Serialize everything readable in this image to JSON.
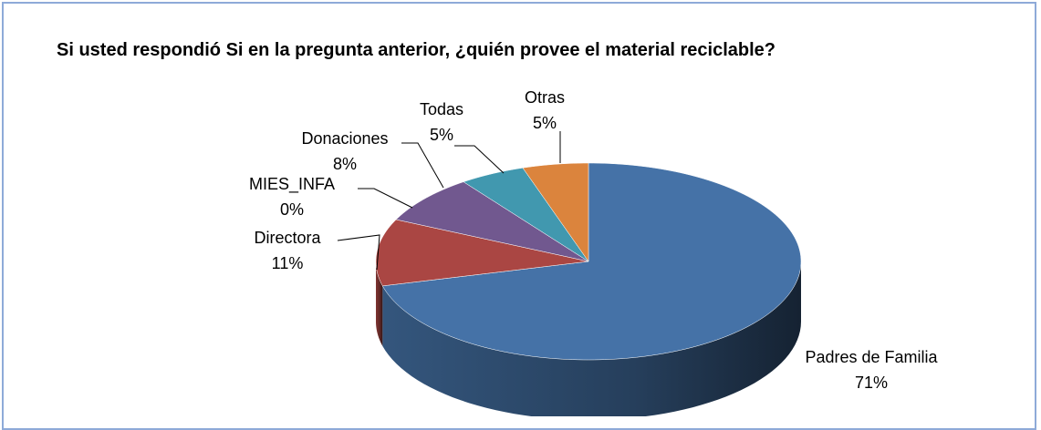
{
  "chart_data": {
    "type": "pie",
    "title": "Si usted respondió Si en la pregunta anterior, ¿quién provee el material reciclable?",
    "categories": [
      "Padres de Familia",
      "Directora",
      "MIES_INFA",
      "Donaciones",
      "Todas",
      "Otras"
    ],
    "values": [
      71,
      11,
      0,
      8,
      5,
      5
    ],
    "value_labels": [
      "71%",
      "11%",
      "0%",
      "8%",
      "5%",
      "5%"
    ],
    "colors": [
      "#4572a7",
      "#aa4643",
      "#89a54e",
      "#71588f",
      "#4198af",
      "#db843d"
    ]
  }
}
